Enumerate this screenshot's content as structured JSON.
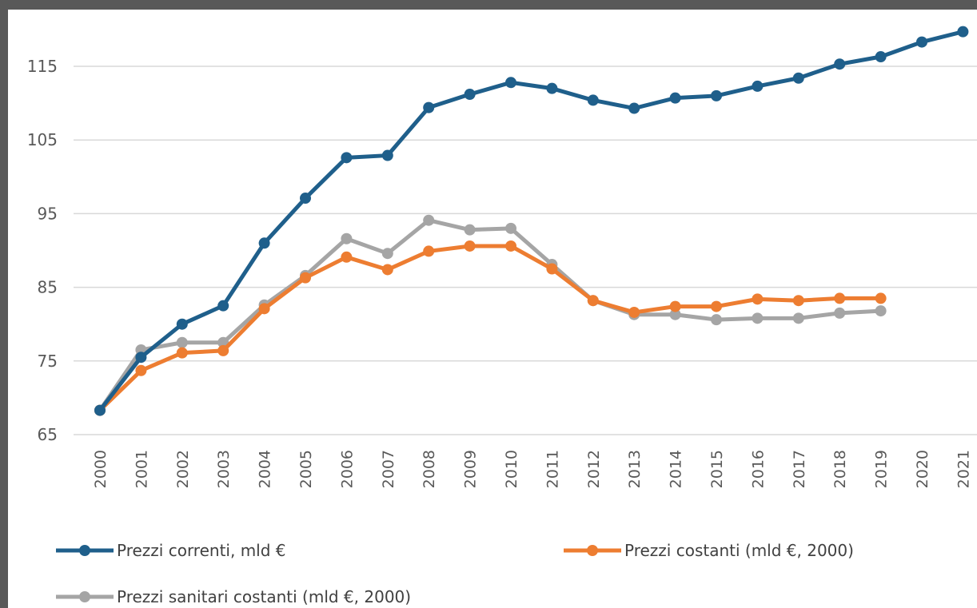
{
  "chart_data": {
    "type": "line",
    "title": "",
    "xlabel": "",
    "ylabel": "",
    "ylim": [
      65,
      120
    ],
    "yticks": [
      65,
      75,
      85,
      95,
      105,
      115
    ],
    "grid": "horizontal",
    "legend_position": "bottom",
    "categories": [
      "2000",
      "2001",
      "2002",
      "2003",
      "2004",
      "2005",
      "2006",
      "2007",
      "2008",
      "2009",
      "2010",
      "2011",
      "2012",
      "2013",
      "2014",
      "2015",
      "2016",
      "2017",
      "2018",
      "2019",
      "2020",
      "2021"
    ],
    "series": [
      {
        "name": "Prezzi correnti, mld €",
        "color": "#1F5F8B",
        "values": [
          68.3,
          75.5,
          80.0,
          82.5,
          91.0,
          97.1,
          102.6,
          102.9,
          109.4,
          111.2,
          112.8,
          112.0,
          110.4,
          109.3,
          110.7,
          111.0,
          112.3,
          113.4,
          115.3,
          116.3,
          118.3,
          119.7
        ]
      },
      {
        "name": "Prezzi costanti (mld €, 2000)",
        "color": "#ED7D31",
        "values": [
          68.3,
          73.7,
          76.1,
          76.4,
          82.1,
          86.3,
          89.1,
          87.4,
          89.9,
          90.6,
          90.6,
          87.5,
          83.2,
          81.6,
          82.4,
          82.4,
          83.4,
          83.2,
          83.5,
          83.5,
          null,
          null
        ]
      },
      {
        "name": "Prezzi sanitari costanti (mld €, 2000)",
        "color": "#A5A5A5",
        "values": [
          68.3,
          76.5,
          77.5,
          77.5,
          82.6,
          86.6,
          91.6,
          89.6,
          94.1,
          92.8,
          93.0,
          88.1,
          83.2,
          81.3,
          81.3,
          80.6,
          80.8,
          80.8,
          81.5,
          81.8,
          null,
          null
        ]
      }
    ]
  }
}
